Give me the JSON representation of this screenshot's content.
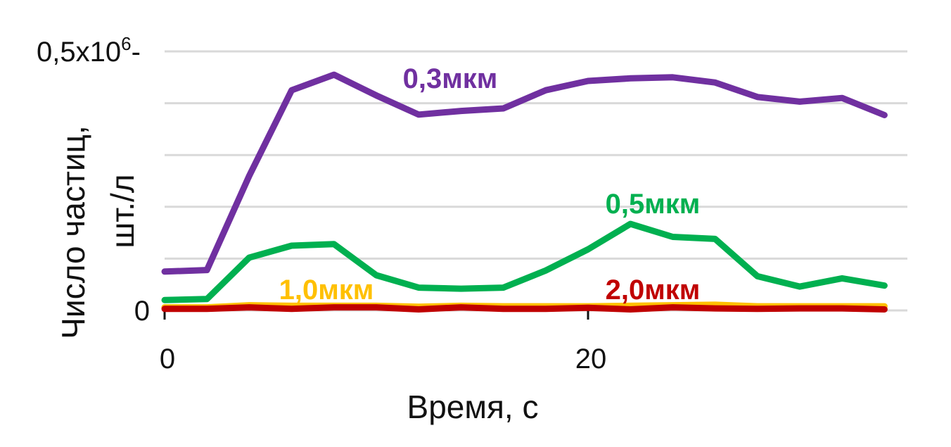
{
  "chart_data": {
    "type": "line",
    "xlabel": "Время, с",
    "ylabel_line1": "Число частиц,",
    "ylabel_line2": "шт./л",
    "y_exponent": "6",
    "xlim": [
      0,
      35
    ],
    "ylim": [
      0,
      500000
    ],
    "x_ticks": [
      {
        "value": 0,
        "label": "0"
      },
      {
        "value": 20,
        "label": "20"
      }
    ],
    "y_ticks": [
      {
        "value": 0,
        "label": "0"
      },
      {
        "value": 500000,
        "label": "0,5x10"
      }
    ],
    "gridlines_y": [
      0,
      100000,
      200000,
      300000,
      400000,
      500000
    ],
    "grid": true,
    "x": [
      0,
      2,
      4,
      6,
      8,
      10,
      12,
      14,
      16,
      18,
      20,
      22,
      24,
      26,
      28,
      30,
      32,
      34
    ],
    "series": [
      {
        "name": "0,3мкм",
        "color": "#7030a0",
        "values": [
          75000,
          78000,
          260000,
          425000,
          455000,
          415000,
          378000,
          385000,
          390000,
          425000,
          443000,
          448000,
          450000,
          440000,
          412000,
          403000,
          410000,
          377000
        ]
      },
      {
        "name": "0,5мкм",
        "color": "#00b050",
        "values": [
          20000,
          22000,
          102000,
          125000,
          128000,
          68000,
          44000,
          42000,
          44000,
          77000,
          118000,
          167000,
          142000,
          138000,
          66000,
          46000,
          62000,
          48000
        ]
      },
      {
        "name": "1,0мкм",
        "color": "#ffc000",
        "values": [
          6000,
          6000,
          10000,
          9000,
          9000,
          9000,
          7000,
          9000,
          8000,
          8000,
          8000,
          9000,
          10000,
          11000,
          8000,
          8000,
          8000,
          8000
        ]
      },
      {
        "name": "2,0мкм",
        "color": "#c00000",
        "values": [
          3000,
          3000,
          6000,
          3000,
          6000,
          6000,
          2000,
          6000,
          3000,
          3000,
          5000,
          2000,
          6000,
          4000,
          3000,
          4000,
          4000,
          2000
        ]
      }
    ]
  }
}
